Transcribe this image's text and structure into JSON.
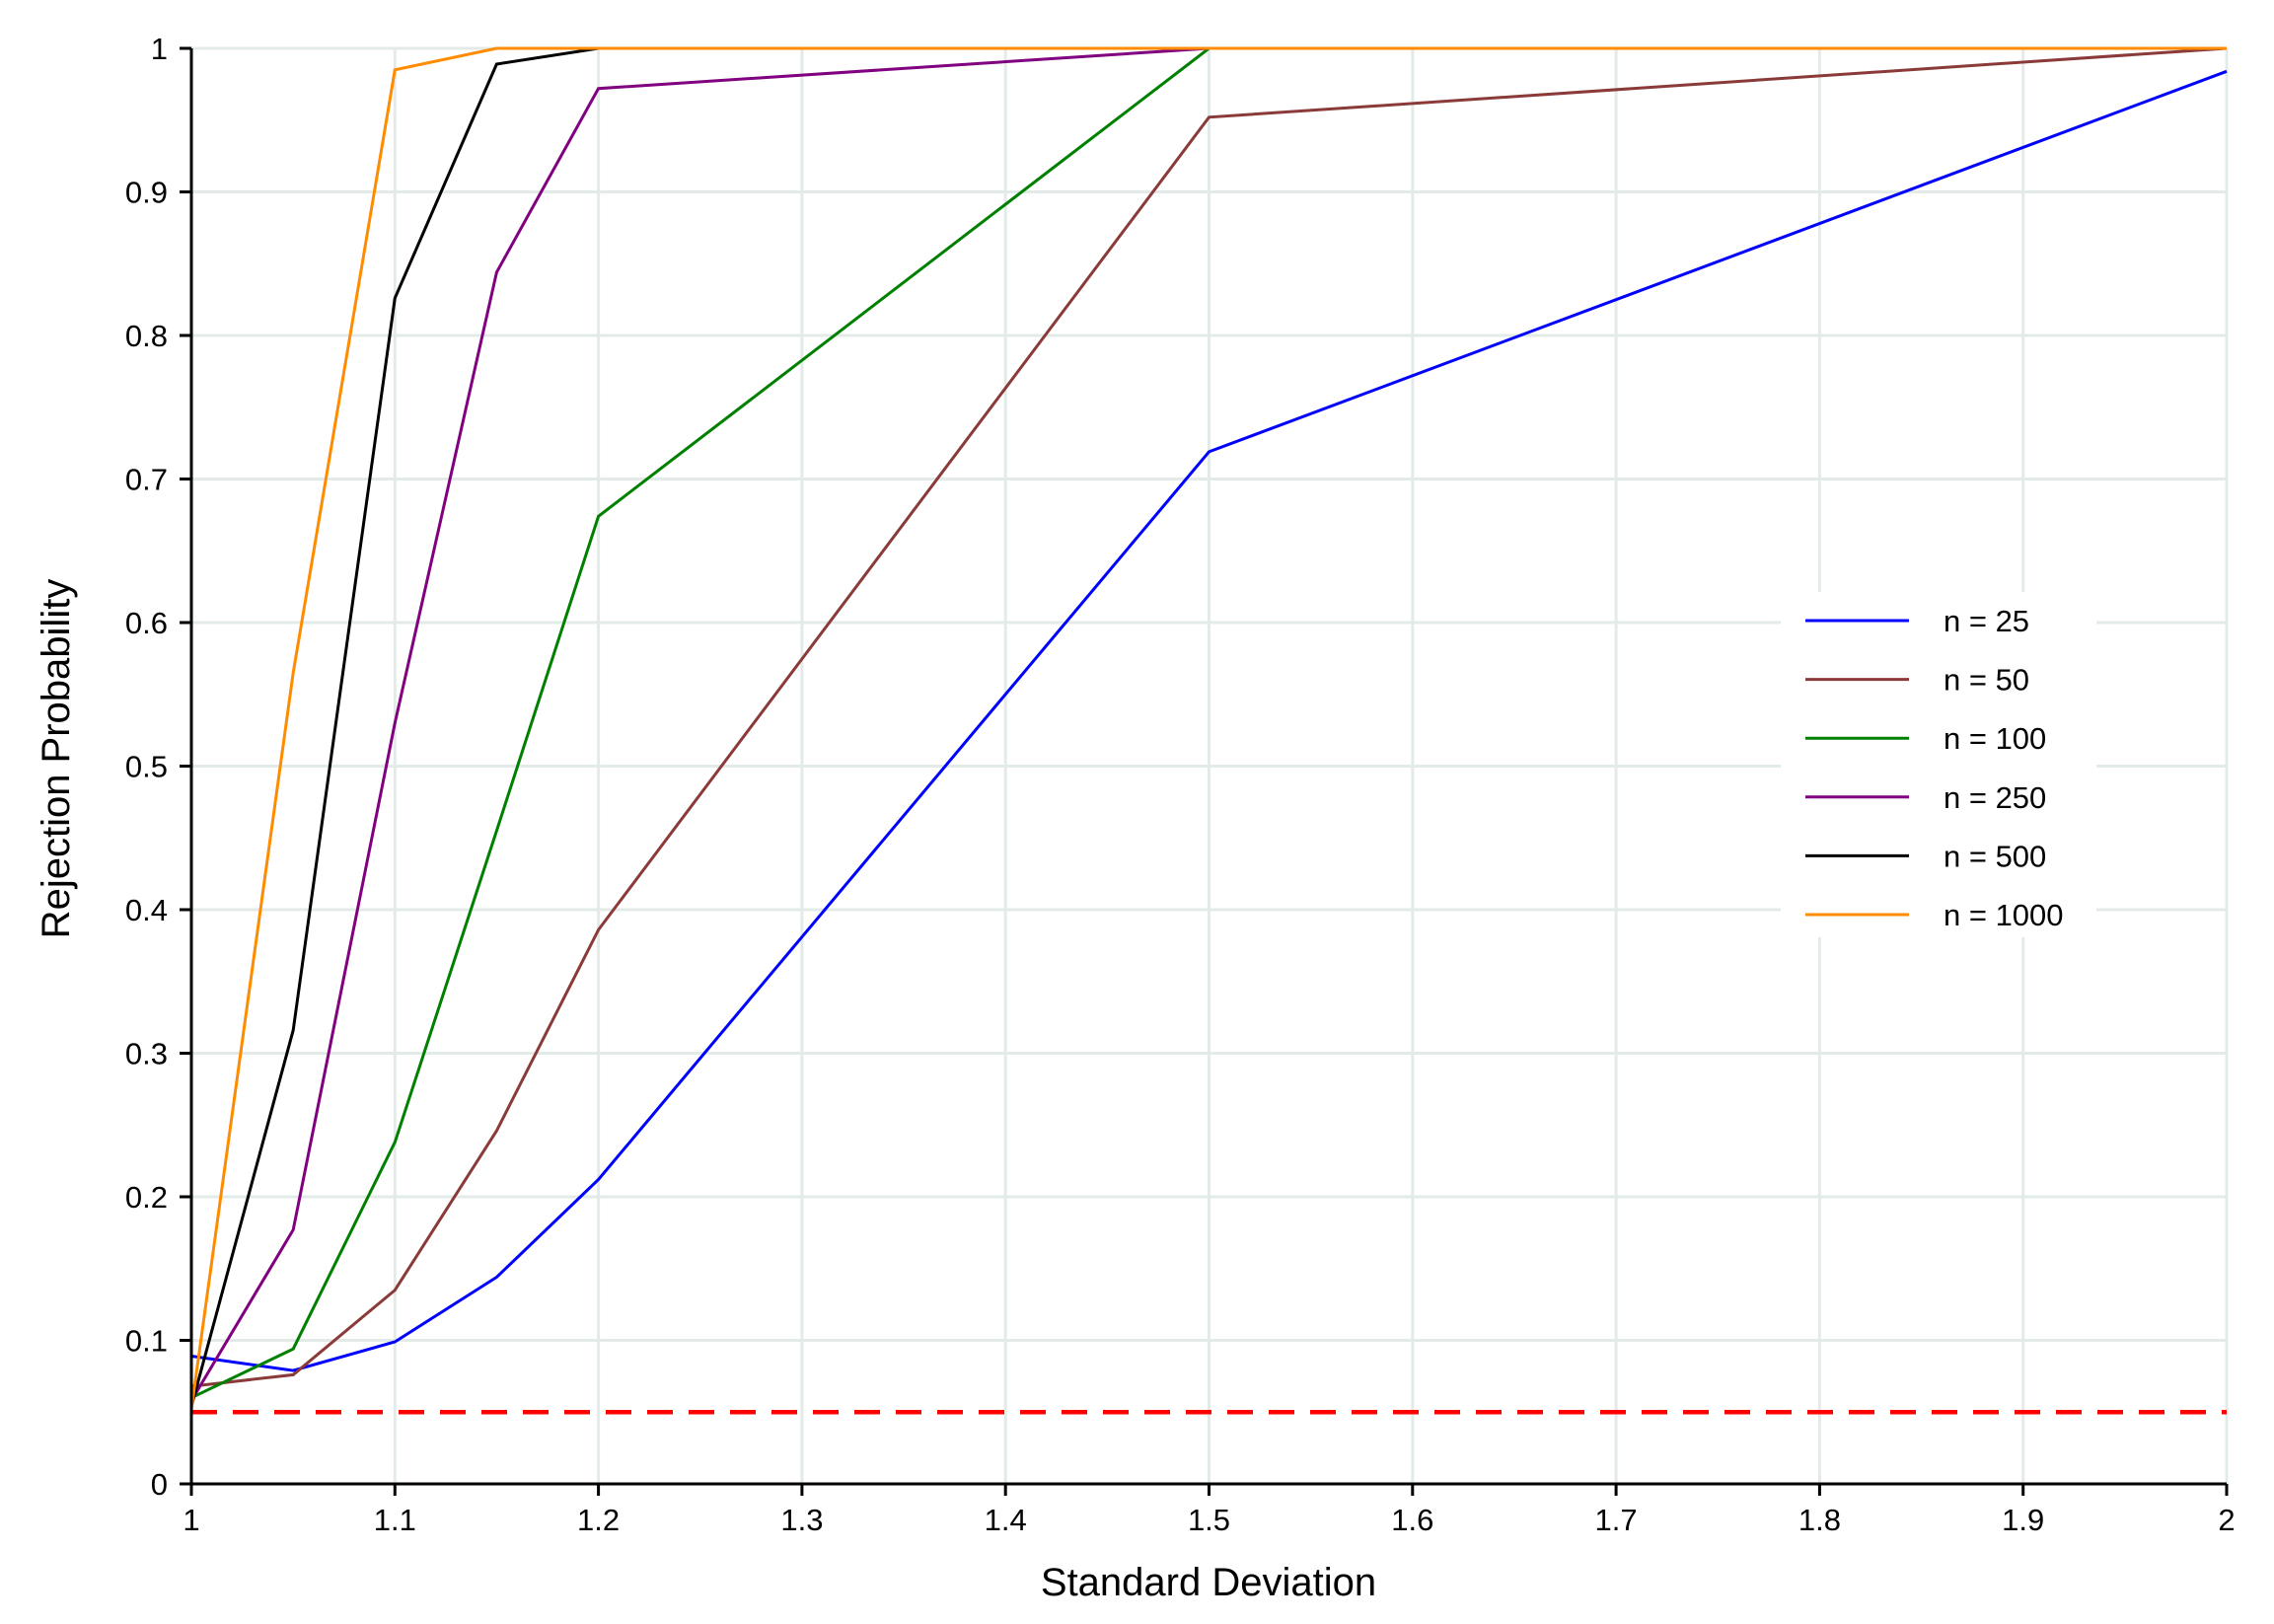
{
  "chart_data": {
    "type": "line",
    "title": "",
    "xlabel": "Standard Deviation",
    "ylabel": "Rejection Probability",
    "xlim": [
      1,
      2
    ],
    "ylim": [
      0,
      1
    ],
    "x_ticks": [
      "1",
      "1.1",
      "1.2",
      "1.3",
      "1.4",
      "1.5",
      "1.6",
      "1.7",
      "1.8",
      "1.9",
      "2"
    ],
    "y_ticks": [
      "0",
      "0.1",
      "0.2",
      "0.3",
      "0.4",
      "0.5",
      "0.6",
      "0.7",
      "0.8",
      "0.9",
      "1"
    ],
    "grid": true,
    "legend_position": "center-right",
    "x": [
      1,
      1.05,
      1.1,
      1.15,
      1.2,
      1.5,
      2
    ],
    "series": [
      {
        "name": "n = 25",
        "color": "#0000ff",
        "values": [
          0.089,
          0.079,
          0.099,
          0.144,
          0.212,
          0.719,
          0.984
        ]
      },
      {
        "name": "n = 50",
        "color": "#8b3a3a",
        "values": [
          0.068,
          0.076,
          0.135,
          0.246,
          0.386,
          0.952,
          1.0
        ]
      },
      {
        "name": "n = 100",
        "color": "#008000",
        "values": [
          0.06,
          0.094,
          0.238,
          0.455,
          0.674,
          1.0,
          1.0
        ]
      },
      {
        "name": "n = 250",
        "color": "#800080",
        "values": [
          0.058,
          0.177,
          0.53,
          0.844,
          0.972,
          1.0,
          1.0
        ]
      },
      {
        "name": "n = 500",
        "color": "#000000",
        "values": [
          0.054,
          0.316,
          0.826,
          0.989,
          1.0,
          1.0,
          1.0
        ]
      },
      {
        "name": "n = 1000",
        "color": "#ff8c00",
        "values": [
          0.052,
          0.565,
          0.985,
          1.0,
          1.0,
          1.0,
          1.0
        ]
      }
    ],
    "reference_line": {
      "y": 0.05,
      "color": "#ff0000",
      "style": "dashed"
    }
  }
}
